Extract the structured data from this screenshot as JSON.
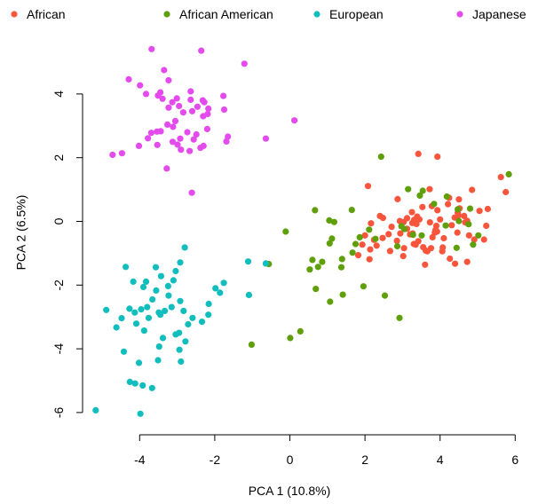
{
  "chart_data": {
    "type": "scatter",
    "xlabel": "PCA 1 (10.8%)",
    "ylabel": "PCA 2 (6.5%)",
    "xlim": [
      -5.4,
      6.2
    ],
    "ylim": [
      -6.5,
      5.7
    ],
    "xticks": [
      -4,
      -2,
      0,
      2,
      4,
      6
    ],
    "xtick_labels": [
      "-4",
      "-2",
      "0",
      "2",
      "4",
      "6"
    ],
    "yticks": [
      -6,
      -4,
      -2,
      0,
      2,
      4
    ],
    "ytick_labels": [
      "-6",
      "-4",
      "-2",
      "0",
      "2",
      "4"
    ],
    "grid": false,
    "legend_position": "top",
    "series": [
      {
        "name": "African",
        "color": "#f8553c",
        "x": [
          3.42,
          3.93,
          4.85,
          4.24,
          5.62,
          5.75,
          3.72,
          3.78,
          3.93,
          4.67,
          4.39,
          4.64,
          5.05,
          5.27,
          4.0,
          4.21,
          4.5,
          4.52,
          4.49,
          4.72,
          4.46,
          4.77,
          4.91,
          3.76,
          5.23,
          4.4,
          4.72,
          3.37,
          3.27,
          4.06,
          3.12,
          2.93,
          2.71,
          2.63,
          2.47,
          3.3,
          2.85,
          2.31,
          2.14,
          2.67,
          1.93,
          2.16,
          2.4,
          2.48,
          3.04,
          3.66,
          3.6,
          3.92,
          3.9,
          3.26,
          3.31,
          3.39,
          3.25,
          3.45,
          3.53,
          3.42,
          3.35,
          3.02,
          3.73,
          3.88,
          2.87,
          3.03,
          3.12,
          2.94,
          3.55,
          3.86,
          4.1,
          4.26,
          4.31,
          4.47,
          5.17,
          2.0,
          1.82,
          2.12,
          2.24,
          2.08,
          3.2,
          3.8,
          4.07,
          3.62
        ],
        "y": [
          2.12,
          2.03,
          0.99,
          0.74,
          1.39,
          0.92,
          1.01,
          0.48,
          0.35,
          -0.03,
          0.12,
          0.17,
          0.33,
          0.39,
          0.06,
          0.54,
          0.69,
          0.41,
          0.19,
          0.02,
          -0.35,
          -0.44,
          -0.57,
          -0.84,
          -0.14,
          -1.33,
          -1.27,
          -0.08,
          -0.38,
          -0.94,
          -0.23,
          0.01,
          -0.17,
          -0.4,
          -0.52,
          -0.71,
          -0.61,
          -0.76,
          -0.88,
          -0.93,
          -0.73,
          -0.06,
          0.17,
          0.11,
          -0.84,
          -0.94,
          -1.36,
          -0.32,
          -0.14,
          -0.05,
          0.05,
          0.15,
          0.29,
          0.06,
          0.45,
          -0.62,
          -0.73,
          -1.09,
          -0.03,
          -0.27,
          0.7,
          -0.02,
          0.1,
          -0.38,
          -0.81,
          -0.35,
          -0.53,
          -1.17,
          -0.12,
          0.27,
          -0.57,
          -0.44,
          -1.06,
          -1.19,
          -0.58,
          1.11,
          -0.41,
          -0.5,
          -0.82,
          -0.92
        ]
      },
      {
        "name": "African American",
        "color": "#5f9f0a",
        "x": [
          2.43,
          3.15,
          3.54,
          3.84,
          4.18,
          4.47,
          5.83,
          4.8,
          4.5,
          4.76,
          4.44,
          4.88,
          5.02,
          3.51,
          3.05,
          2.97,
          2.86,
          2.28,
          2.11,
          1.86,
          1.75,
          1.67,
          1.39,
          1.06,
          0.69,
          0.75,
          0.86,
          1.12,
          1.37,
          1.18,
          1.05,
          0.53,
          0.6,
          -0.11,
          -0.56,
          -1.02,
          0.01,
          0.28,
          1.07,
          1.41,
          1.65,
          1.96,
          2.53,
          2.92,
          3.28,
          3.46,
          4.15,
          0.67
        ],
        "y": [
          2.03,
          1.01,
          0.96,
          0.55,
          0.78,
          0.38,
          1.48,
          0.4,
          0.01,
          -0.09,
          -0.83,
          -0.73,
          -0.44,
          -0.44,
          -0.24,
          -0.15,
          -0.78,
          -0.55,
          -0.26,
          -0.5,
          -0.71,
          -0.98,
          -1.18,
          -0.69,
          -2.12,
          -1.43,
          -1.27,
          -0.54,
          -1.44,
          -0.02,
          0.03,
          -1.51,
          -1.21,
          -0.32,
          -1.34,
          -3.87,
          -3.66,
          -3.45,
          -2.52,
          -2.3,
          0.36,
          -2.04,
          -2.33,
          -3.03,
          -0.42,
          0.81,
          -0.13,
          0.35
        ]
      },
      {
        "name": "European",
        "color": "#12bdbd",
        "x": [
          -2.8,
          -2.92,
          -3.04,
          -3.1,
          -3.24,
          -3.43,
          -3.57,
          -3.83,
          -3.9,
          -4.17,
          -4.37,
          -3.56,
          -3.66,
          -3.8,
          -3.96,
          -3.45,
          -3.15,
          -2.92,
          -2.83,
          -2.71,
          -2.95,
          -2.59,
          -2.34,
          -2.17,
          -2.16,
          -1.98,
          -1.76,
          -1.86,
          -1.11,
          -1.09,
          -0.64,
          -3.23,
          -3.33,
          -3.49,
          -3.76,
          -4.13,
          -4.27,
          -4.09,
          -3.88,
          -4.42,
          -4.48,
          -4.62,
          -4.89,
          -5.17,
          -4.02,
          -4.12,
          -4.26,
          -3.98,
          -3.92,
          -3.67,
          -3.51,
          -2.94,
          -3.04,
          -2.78,
          -3.38,
          -3.48,
          -2.9
        ],
        "y": [
          -0.82,
          -1.29,
          -1.56,
          -1.85,
          -2.03,
          -1.72,
          -1.44,
          -1.89,
          -2.06,
          -1.89,
          -1.43,
          -2.17,
          -2.45,
          -2.69,
          -2.76,
          -2.93,
          -2.69,
          -2.5,
          -2.81,
          -3.23,
          -3.5,
          -3.03,
          -3.15,
          -2.93,
          -2.59,
          -2.1,
          -1.93,
          -2.24,
          -1.26,
          -2.31,
          -1.32,
          -2.33,
          -2.81,
          -2.86,
          -3.03,
          -2.86,
          -2.74,
          -3.21,
          -3.43,
          -4.09,
          -3.04,
          -3.33,
          -2.78,
          -5.93,
          -4.44,
          -5.09,
          -5.04,
          -6.04,
          -5.15,
          -5.23,
          -4.36,
          -4.03,
          -3.55,
          -3.77,
          -3.66,
          -3.93,
          -4.4
        ]
      },
      {
        "name": "Japanese",
        "color": "#e44bed",
        "x": [
          -3.68,
          -2.36,
          -1.21,
          -3.35,
          -3.23,
          -3.45,
          -2.64,
          -4.29,
          -3.99,
          -3.83,
          -3.51,
          -3.39,
          -3.01,
          -3.13,
          -3.23,
          -2.95,
          -2.64,
          -2.32,
          -2.46,
          -2.31,
          -2.19,
          -2.17,
          -2.28,
          -1.75,
          -1.77,
          -2.6,
          -2.84,
          -3.05,
          -3.11,
          -2.73,
          -2.49,
          -2.2,
          -3.26,
          -3.44,
          -3.54,
          -3.69,
          -3.78,
          -4.02,
          -3.53,
          -3.12,
          -2.92,
          -2.99,
          -2.9,
          -2.67,
          -2.38,
          -2.3,
          -2.56,
          -3.28,
          -1.69,
          -1.65,
          -0.64,
          0.12,
          -2.61,
          -4.47,
          -4.72
        ],
        "y": [
          5.41,
          5.36,
          4.95,
          4.75,
          4.43,
          4.05,
          4.08,
          4.46,
          4.27,
          4.0,
          3.95,
          3.85,
          3.86,
          3.74,
          3.57,
          3.62,
          3.82,
          3.8,
          3.6,
          3.3,
          3.37,
          3.54,
          3.74,
          3.51,
          3.94,
          3.46,
          3.42,
          3.15,
          2.97,
          2.8,
          2.73,
          2.9,
          3.04,
          2.83,
          2.82,
          2.78,
          2.61,
          2.37,
          2.4,
          2.5,
          2.6,
          2.41,
          2.25,
          2.21,
          2.31,
          2.37,
          2.57,
          1.66,
          2.51,
          2.66,
          2.6,
          3.17,
          0.9,
          2.14,
          2.09
        ]
      }
    ]
  }
}
